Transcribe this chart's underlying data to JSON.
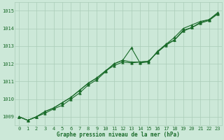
{
  "title": "Graphe pression niveau de la mer (hPa)",
  "background_color": "#cce8d8",
  "grid_color": "#aaccb8",
  "line_color": "#1a6b2a",
  "x_labels": [
    "0",
    "1",
    "2",
    "3",
    "4",
    "5",
    "6",
    "7",
    "8",
    "9",
    "10",
    "11",
    "12",
    "13",
    "14",
    "15",
    "16",
    "17",
    "18",
    "19",
    "20",
    "21",
    "22",
    "23"
  ],
  "ylim": [
    1008.5,
    1015.5
  ],
  "yticks": [
    1009,
    1010,
    1011,
    1012,
    1013,
    1014,
    1015
  ],
  "series1": [
    1009.0,
    1008.8,
    1009.0,
    1009.2,
    1009.45,
    1009.65,
    1010.0,
    1010.35,
    1010.8,
    1011.1,
    1011.55,
    1012.0,
    1012.2,
    1012.9,
    1012.05,
    1012.1,
    1012.7,
    1013.1,
    1013.5,
    1014.0,
    1014.2,
    1014.4,
    1014.5,
    1014.9
  ],
  "series2": [
    1009.0,
    1008.8,
    1009.0,
    1009.3,
    1009.5,
    1009.8,
    1010.1,
    1010.5,
    1010.9,
    1011.2,
    1011.6,
    1011.9,
    1012.1,
    1012.05,
    1012.1,
    1012.15,
    1012.65,
    1013.1,
    1013.35,
    1013.9,
    1014.05,
    1014.35,
    1014.5,
    1014.85
  ],
  "series3": [
    1009.0,
    1008.8,
    1009.0,
    1009.3,
    1009.5,
    1009.8,
    1010.1,
    1010.5,
    1010.9,
    1011.2,
    1011.6,
    1012.0,
    1012.2,
    1012.1,
    1012.1,
    1012.15,
    1012.65,
    1013.05,
    1013.35,
    1013.85,
    1014.05,
    1014.3,
    1014.45,
    1014.82
  ],
  "ylabel_fontsize": 5,
  "xlabel_fontsize": 5,
  "title_fontsize": 5.5,
  "linewidth": 0.8,
  "markersize": 2.5
}
